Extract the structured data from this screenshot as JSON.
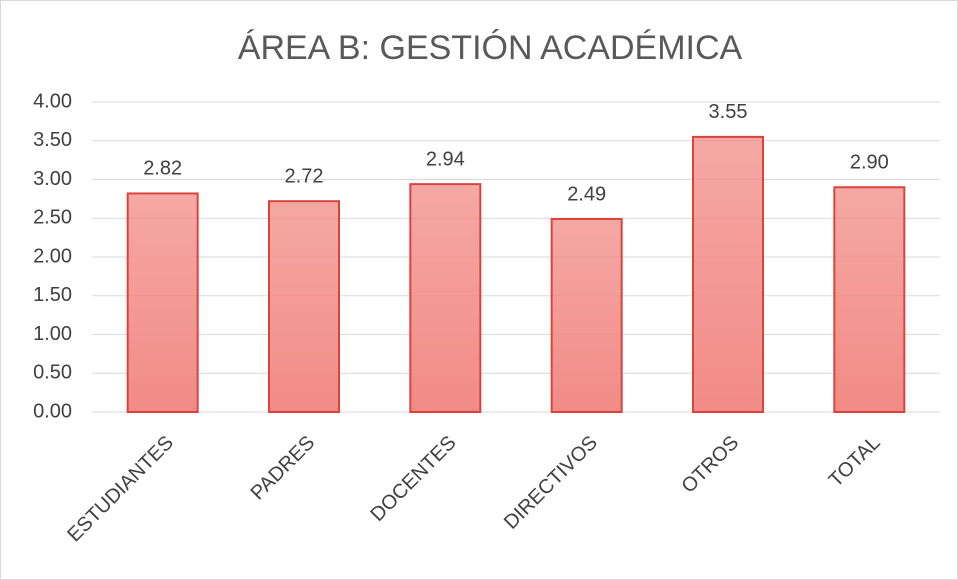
{
  "chart_data": {
    "type": "bar",
    "title": "ÁREA B: GESTIÓN ACADÉMICA",
    "categories": [
      "ESTUDIANTES",
      "PADRES",
      "DOCENTES",
      "DIRECTIVOS",
      "OTROS",
      "TOTAL"
    ],
    "values": [
      2.82,
      2.72,
      2.94,
      2.49,
      3.55,
      2.9
    ],
    "value_labels": [
      "2.82",
      "2.72",
      "2.94",
      "2.49",
      "3.55",
      "2.90"
    ],
    "color": "#f28b86",
    "edge_color": "#d9443d",
    "ylim": [
      0,
      4
    ],
    "yticks": [
      {
        "value": 0,
        "label": "0.00"
      },
      {
        "value": 0.5,
        "label": "0.50"
      },
      {
        "value": 1,
        "label": "1.00"
      },
      {
        "value": 1.5,
        "label": "1.50"
      },
      {
        "value": 2,
        "label": "2.00"
      },
      {
        "value": 2.5,
        "label": "2.50"
      },
      {
        "value": 3,
        "label": "3.00"
      },
      {
        "value": 3.5,
        "label": "3.50"
      },
      {
        "value": 4,
        "label": "4.00"
      }
    ],
    "grid": true
  }
}
